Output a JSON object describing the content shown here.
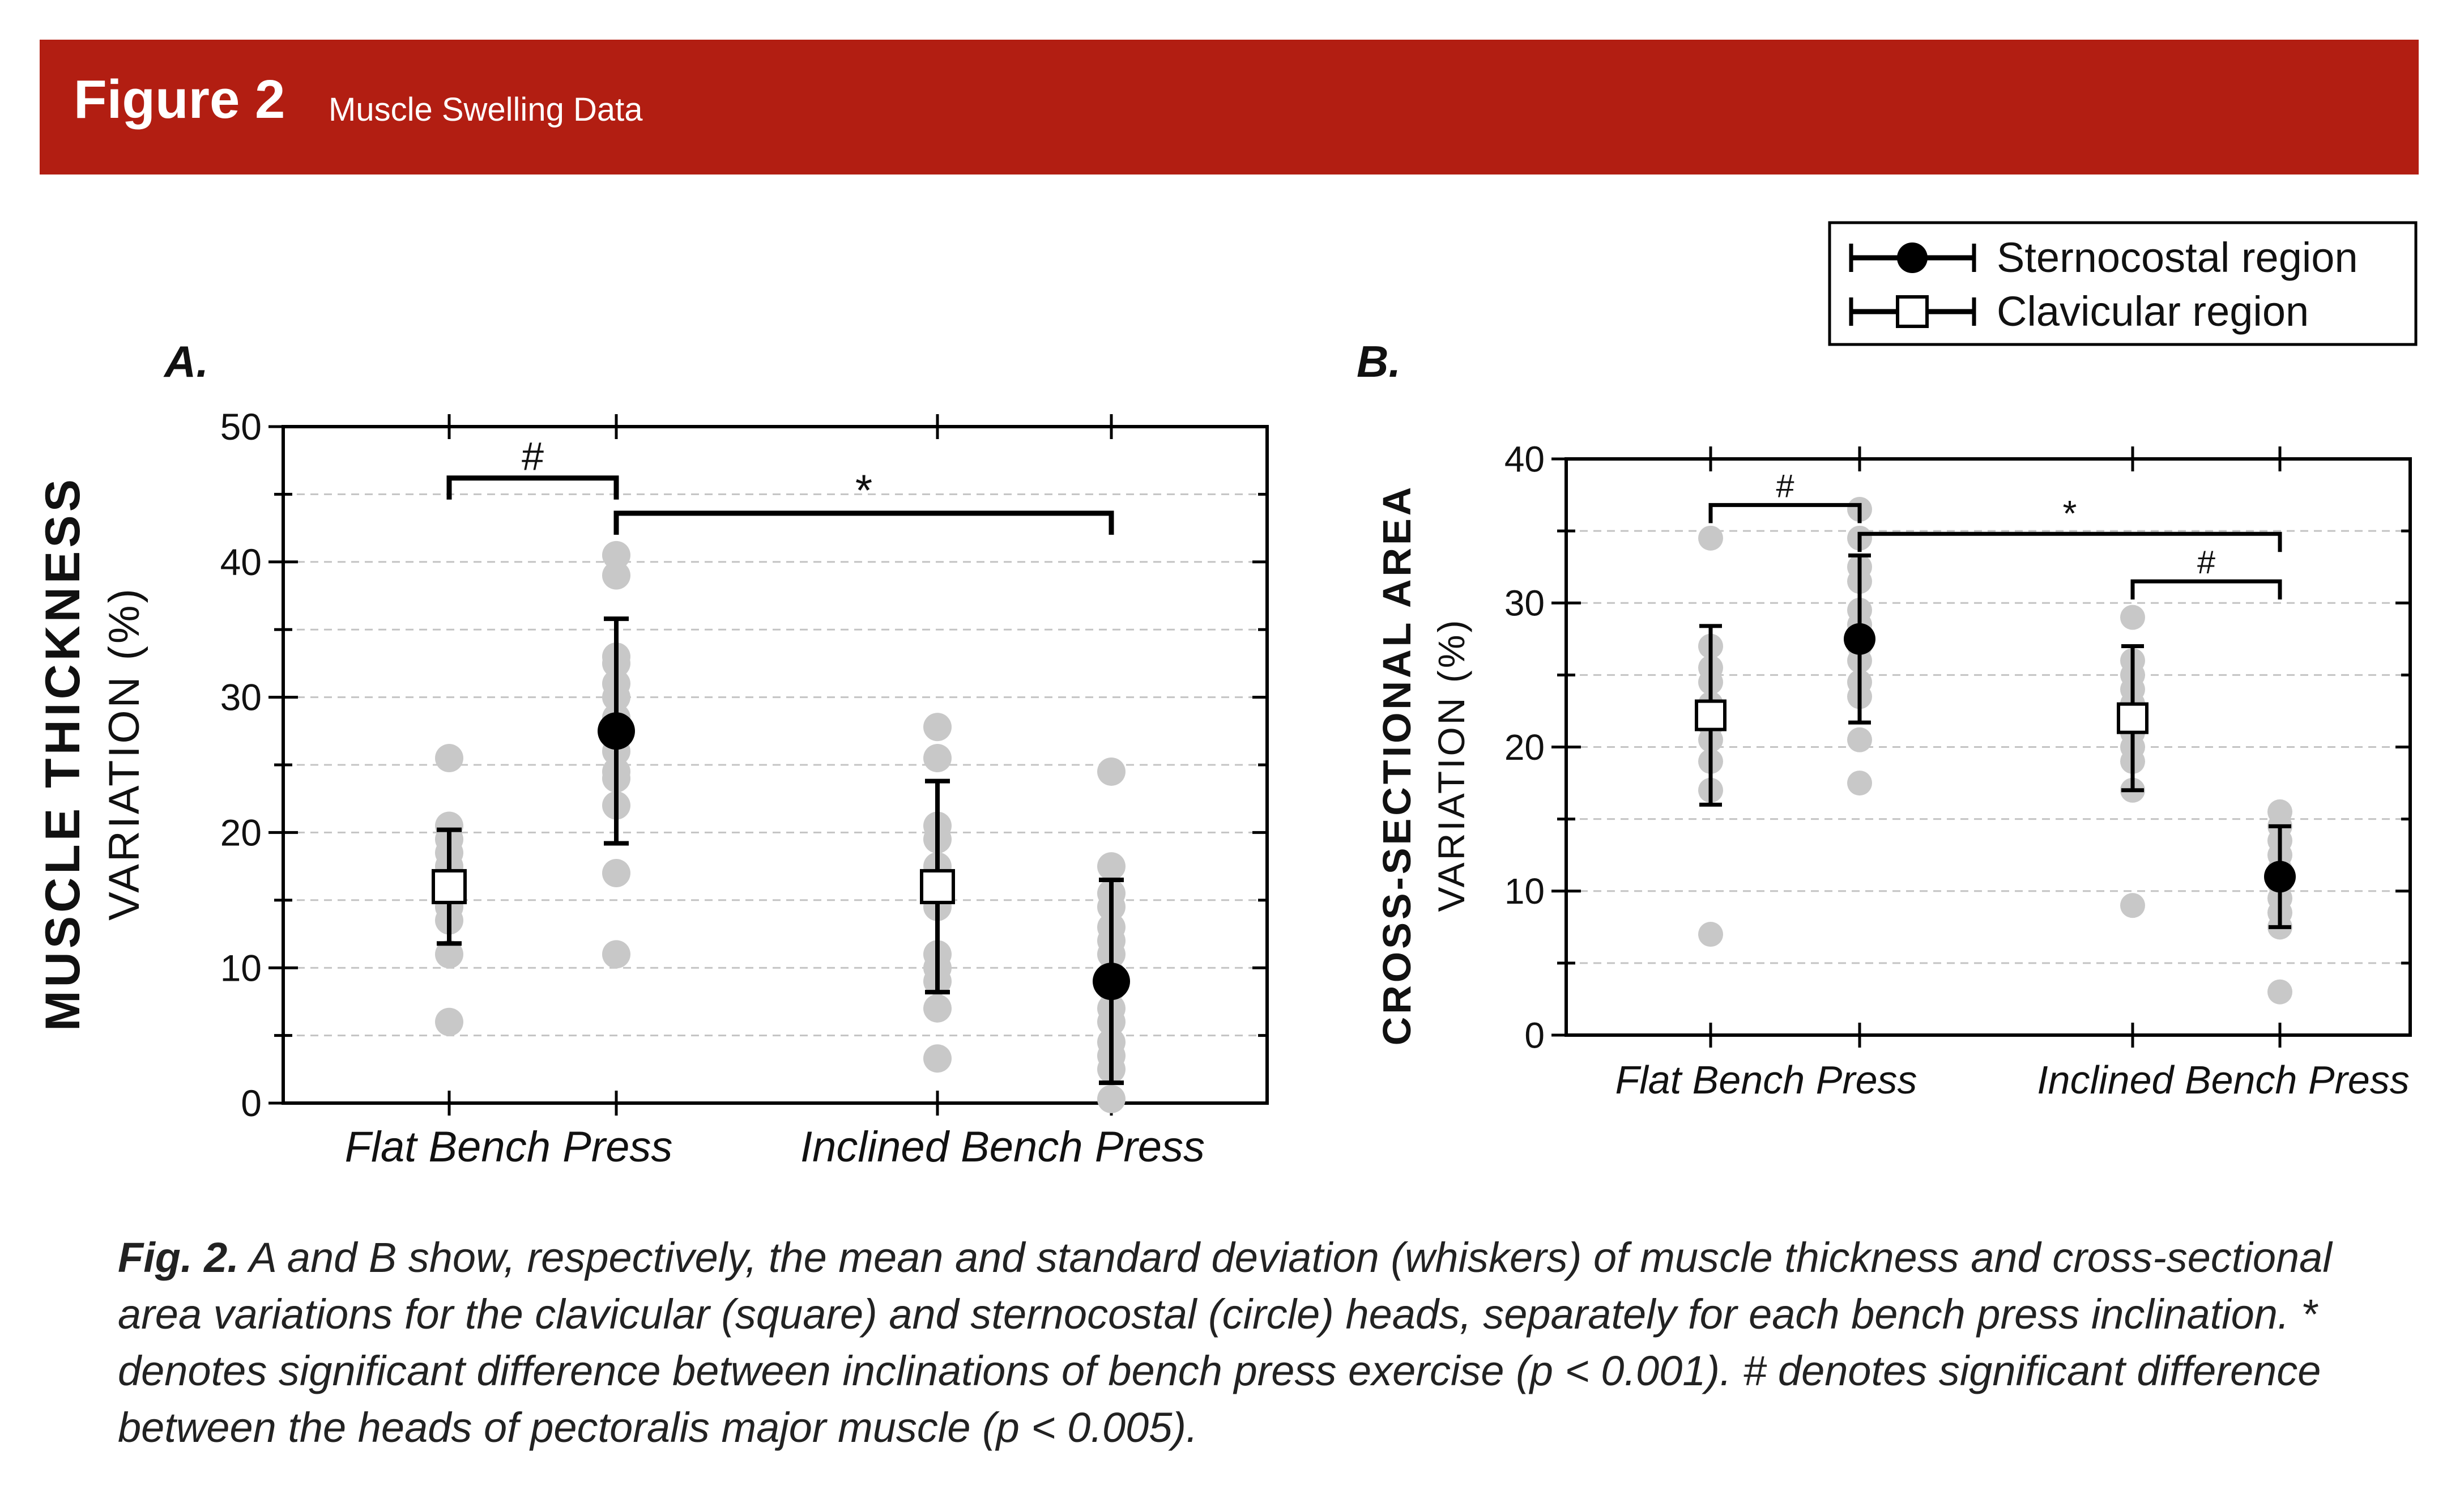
{
  "header": {
    "title": "Figure 2",
    "subtitle": "Muscle Swelling Data"
  },
  "legend": [
    {
      "label": "Sternocostal region",
      "marker": "filled-circle"
    },
    {
      "label": "Clavicular region",
      "marker": "open-square"
    }
  ],
  "colors": {
    "banner": "#b21e12",
    "mean": "#000000",
    "individual": "#c8c8c8"
  },
  "chart_data": [
    {
      "panel": "A.",
      "type": "scatter",
      "ylabel_line1": "MUSCLE THICKNESS",
      "ylabel_line2": "VARIATION (%)",
      "ylim": [
        0,
        50
      ],
      "yticks": [
        0,
        10,
        20,
        30,
        40,
        50
      ],
      "categories": [
        "Flat Bench Press",
        "Inclined Bench Press"
      ],
      "groups": [
        {
          "category": "Flat Bench Press",
          "series": "Clavicular region",
          "mean": 16,
          "sd": 4.2,
          "points": [
            25.5,
            20.5,
            19.5,
            18.5,
            17.5,
            16.5,
            15.5,
            14.5,
            13.5,
            11,
            6
          ]
        },
        {
          "category": "Flat Bench Press",
          "series": "Sternocostal region",
          "mean": 27.5,
          "sd": 8.3,
          "points": [
            40.5,
            39,
            33,
            32.5,
            31,
            30,
            28.5,
            26,
            24.5,
            24,
            22,
            17,
            11
          ]
        },
        {
          "category": "Inclined Bench Press",
          "series": "Clavicular region",
          "mean": 16,
          "sd": 7.8,
          "points": [
            27.8,
            25.5,
            20.5,
            19.5,
            17.5,
            14.5,
            11,
            10,
            9,
            7,
            3.3
          ]
        },
        {
          "category": "Inclined Bench Press",
          "series": "Sternocostal region",
          "mean": 9,
          "sd": 7.5,
          "points": [
            24.5,
            17.5,
            15.5,
            14.5,
            13,
            12,
            11,
            9.5,
            8.5,
            7,
            6,
            4.5,
            3.5,
            2.5,
            0.3
          ]
        }
      ],
      "annotations": [
        {
          "symbol": "#",
          "from": "Flat Bench Press — Clavicular region",
          "to": "Flat Bench Press — Sternocostal region",
          "bracket_y": 46.2
        },
        {
          "symbol": "*",
          "from": "Flat Bench Press — Sternocostal region",
          "to": "Inclined Bench Press — Sternocostal region",
          "bracket_y": 43.6
        }
      ]
    },
    {
      "panel": "B.",
      "type": "scatter",
      "ylabel_line1": "CROSS-SECTIONAL AREA",
      "ylabel_line2": "VARIATION (%)",
      "ylim": [
        0,
        40
      ],
      "yticks": [
        0,
        10,
        20,
        30,
        40
      ],
      "categories": [
        "Flat Bench Press",
        "Inclined Bench Press"
      ],
      "groups": [
        {
          "category": "Flat Bench Press",
          "series": "Clavicular region",
          "mean": 22.2,
          "sd": 6.2,
          "points": [
            34.5,
            27,
            25.5,
            24.5,
            23,
            21.5,
            20.5,
            19,
            17,
            7
          ]
        },
        {
          "category": "Flat Bench Press",
          "series": "Sternocostal region",
          "mean": 27.5,
          "sd": 5.8,
          "points": [
            36.5,
            34.5,
            32.5,
            31.5,
            29.5,
            28.5,
            27,
            26,
            24.5,
            23.5,
            20.5,
            17.5
          ]
        },
        {
          "category": "Inclined Bench Press",
          "series": "Clavicular region",
          "mean": 22,
          "sd": 5,
          "points": [
            29,
            26,
            25,
            24,
            23,
            22,
            21,
            20,
            19,
            17,
            9
          ]
        },
        {
          "category": "Inclined Bench Press",
          "series": "Sternocostal region",
          "mean": 11,
          "sd": 3.5,
          "points": [
            15.5,
            14.5,
            13.5,
            12.5,
            11.5,
            10.5,
            9.5,
            8.5,
            7.5,
            3
          ]
        }
      ],
      "annotations": [
        {
          "symbol": "#",
          "from": "Flat Bench Press — Clavicular region",
          "to": "Flat Bench Press — Sternocostal region",
          "bracket_y": 36.8
        },
        {
          "symbol": "*",
          "from": "Flat Bench Press — Sternocostal region",
          "to": "Inclined Bench Press — Sternocostal region",
          "bracket_y": 34.8
        },
        {
          "symbol": "#",
          "from": "Inclined Bench Press — Clavicular region",
          "to": "Inclined Bench Press — Sternocostal region",
          "bracket_y": 31.5
        }
      ]
    }
  ],
  "caption": {
    "label": "Fig. 2.",
    "text": "A and B show, respectively, the mean and standard deviation (whiskers) of muscle thickness and cross-sectional area variations for the clavicular (square) and sternocostal (circle) heads, separately for each bench press inclination. * denotes significant difference between inclinations of bench press exercise (p < 0.001). # denotes significant difference between the heads of pectoralis major muscle (p < 0.005)."
  }
}
